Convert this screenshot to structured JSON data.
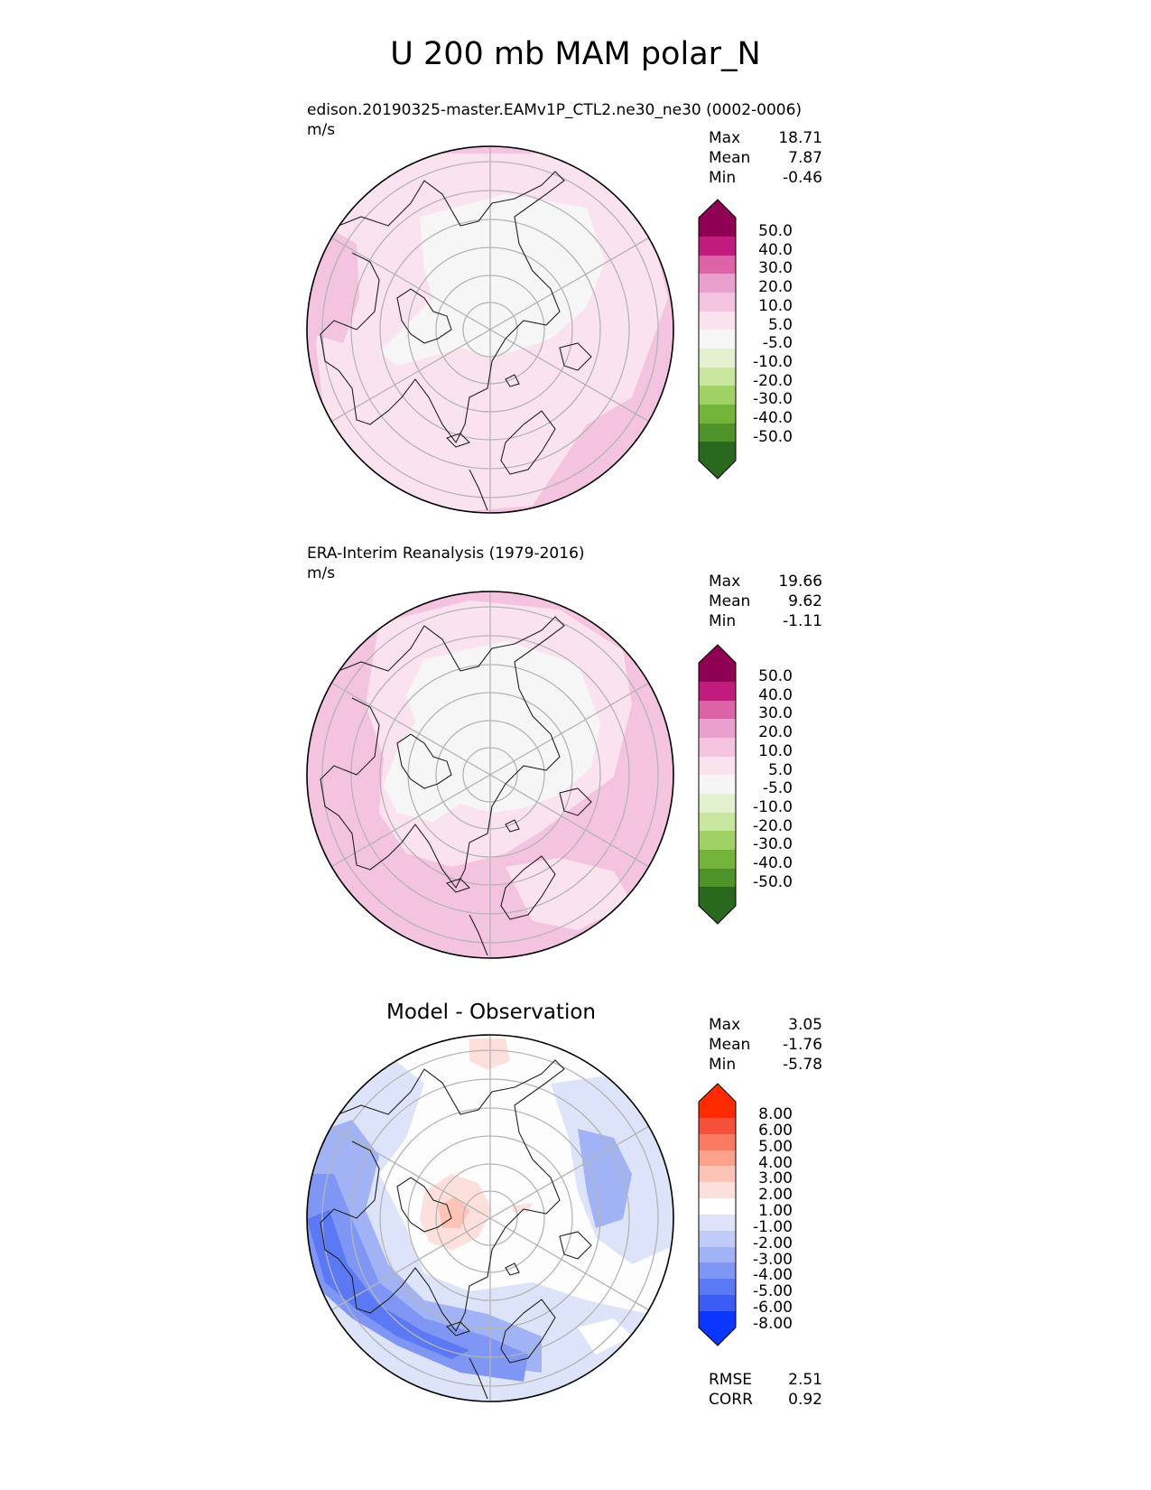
{
  "figure_title": "U 200 mb MAM polar_N",
  "colors": {
    "pink": [
      "#f7f6f6",
      "#fbe2ef",
      "#f3c3df",
      "#eaa0cd",
      "#dc64a6",
      "#c11b7d",
      "#8e0152"
    ],
    "green": [
      "#e3f1cf",
      "#c8e69e",
      "#9fd164",
      "#74b43b",
      "#4e9329",
      "#28691d"
    ],
    "diff_red": [
      "#fde0dc",
      "#fcc3b6",
      "#fca28c",
      "#fb7a62",
      "#f4503a",
      "#ff2b00"
    ],
    "diff_blue": [
      "#dde3f9",
      "#c0ccf7",
      "#a1b3f5",
      "#7f96f5",
      "#5b79f5",
      "#3b5cf5",
      "#0a36ff"
    ],
    "grid": "#b5b5b5",
    "coast": "#222222"
  },
  "panels": {
    "test": {
      "title": "edison.20190325-master.EAMv1P_CTL2.ne30_ne30 (0002-0006)",
      "units": "m/s",
      "stats": {
        "max_label": "Max",
        "max": "18.71",
        "mean_label": "Mean",
        "mean": "7.87",
        "min_label": "Min",
        "min": "-0.46"
      },
      "colorbar_ticks": [
        "50.0",
        "40.0",
        "30.0",
        "20.0",
        "10.0",
        "5.0",
        "-5.0",
        "-10.0",
        "-20.0",
        "-30.0",
        "-40.0",
        "-50.0"
      ]
    },
    "ref": {
      "title": "ERA-Interim Reanalysis (1979-2016)",
      "units": "m/s",
      "stats": {
        "max_label": "Max",
        "max": "19.66",
        "mean_label": "Mean",
        "mean": "9.62",
        "min_label": "Min",
        "min": "-1.11"
      },
      "colorbar_ticks": [
        "50.0",
        "40.0",
        "30.0",
        "20.0",
        "10.0",
        "5.0",
        "-5.0",
        "-10.0",
        "-20.0",
        "-30.0",
        "-40.0",
        "-50.0"
      ]
    },
    "diff": {
      "title": "Model - Observation",
      "stats": {
        "max_label": "Max",
        "max": "3.05",
        "mean_label": "Mean",
        "mean": "-1.76",
        "min_label": "Min",
        "min": "-5.78"
      },
      "colorbar_ticks": [
        "8.00",
        "6.00",
        "5.00",
        "4.00",
        "3.00",
        "2.00",
        "1.00",
        "-1.00",
        "-2.00",
        "-3.00",
        "-4.00",
        "-5.00",
        "-6.00",
        "-8.00"
      ],
      "metrics": {
        "rmse_label": "RMSE",
        "rmse": "2.51",
        "corr_label": "CORR",
        "corr": "0.92"
      }
    }
  },
  "chart_data": {
    "type": "polar-contour",
    "projection": "north polar stereographic",
    "variable": "U",
    "level_mb": 200,
    "season": "MAM",
    "panels": [
      {
        "name": "test",
        "units": "m/s",
        "max": 18.71,
        "mean": 7.87,
        "min": -0.46,
        "levels": [
          -50,
          -40,
          -30,
          -20,
          -10,
          -5,
          5,
          10,
          20,
          30,
          40,
          50
        ]
      },
      {
        "name": "ref",
        "units": "m/s",
        "max": 19.66,
        "mean": 9.62,
        "min": -1.11,
        "levels": [
          -50,
          -40,
          -30,
          -20,
          -10,
          -5,
          5,
          10,
          20,
          30,
          40,
          50
        ]
      },
      {
        "name": "diff",
        "max": 3.05,
        "mean": -1.76,
        "min": -5.78,
        "rmse": 2.51,
        "corr": 0.92,
        "levels": [
          -8,
          -6,
          -5,
          -4,
          -3,
          -2,
          -1,
          1,
          2,
          3,
          4,
          5,
          6,
          8
        ]
      }
    ]
  }
}
